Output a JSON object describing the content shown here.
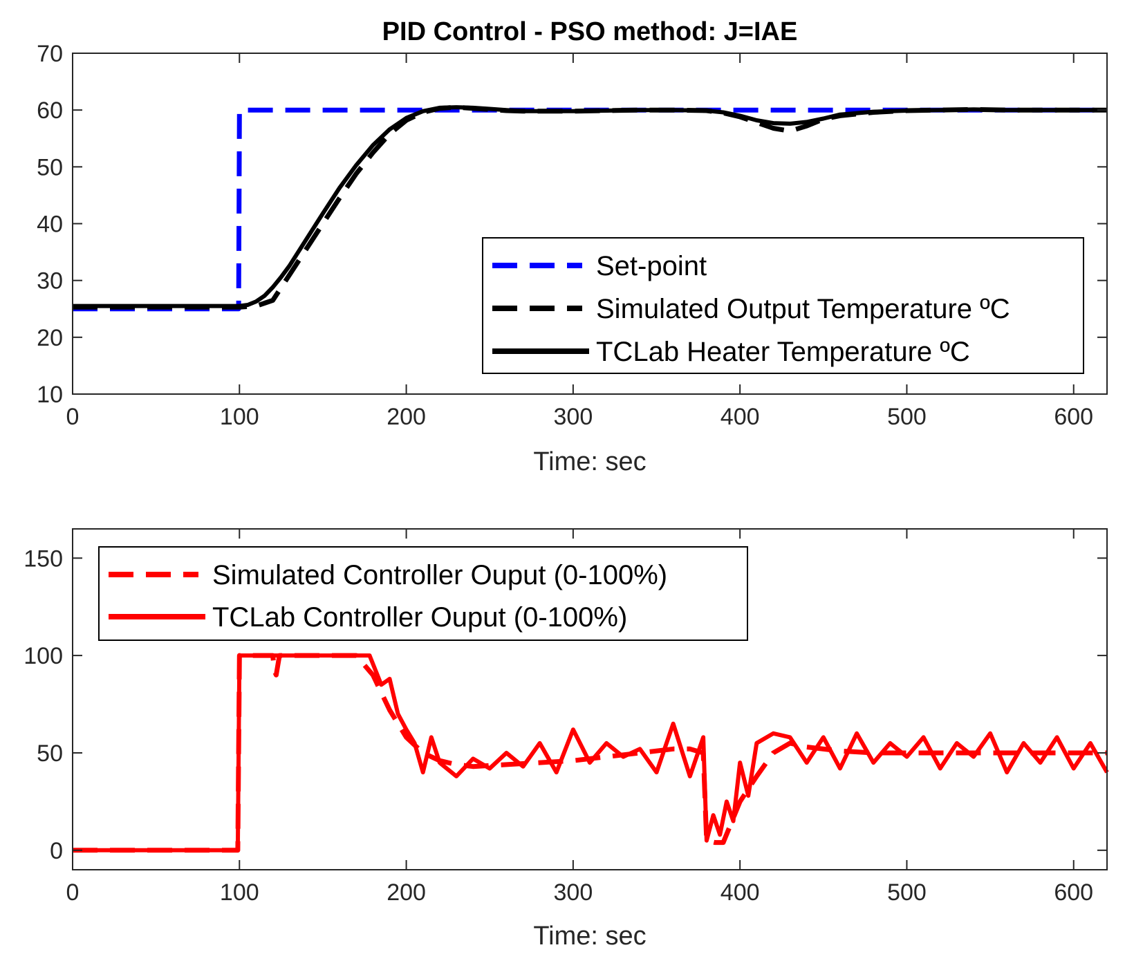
{
  "chart_data": [
    {
      "type": "line",
      "title": "PID Control - PSO method: J=IAE",
      "xlabel": "Time: sec",
      "ylabel": "",
      "xlim": [
        0,
        620
      ],
      "ylim": [
        10,
        70
      ],
      "xticks": [
        "0",
        "100",
        "200",
        "300",
        "400",
        "500",
        "600"
      ],
      "yticks": [
        "10",
        "20",
        "30",
        "40",
        "50",
        "60",
        "70"
      ],
      "grid": false,
      "legend_position": "bottom-right",
      "series": [
        {
          "name": "Set-point",
          "style": "dashed",
          "color": "#0000ff",
          "x": [
            0,
            99.5,
            100,
            620
          ],
          "y": [
            25,
            25,
            60,
            60
          ]
        },
        {
          "name": "Simulated Output Temperature ºC",
          "style": "dashed",
          "color": "#000000",
          "x": [
            0,
            100,
            110,
            120,
            130,
            140,
            150,
            160,
            170,
            180,
            190,
            200,
            210,
            220,
            230,
            240,
            250,
            260,
            270,
            280,
            290,
            300,
            320,
            340,
            360,
            380,
            390,
            400,
            410,
            420,
            430,
            440,
            450,
            460,
            480,
            500,
            520,
            540,
            560,
            580,
            600,
            620
          ],
          "y": [
            25.3,
            25.3,
            25.5,
            26.5,
            31,
            35.5,
            40,
            44.5,
            48.8,
            52.5,
            55.8,
            58.2,
            59.6,
            60.3,
            60.5,
            60.3,
            60.1,
            59.9,
            59.8,
            59.8,
            59.8,
            59.8,
            59.9,
            60.0,
            60.0,
            59.9,
            59.5,
            58.8,
            57.8,
            56.8,
            56.3,
            57.2,
            58.4,
            59.0,
            59.6,
            59.9,
            60.0,
            60.1,
            60.0,
            60.0,
            60.0,
            60.0
          ]
        },
        {
          "name": "TCLab Heater Temperature ºC",
          "style": "solid",
          "color": "#000000",
          "x": [
            0,
            100,
            105,
            110,
            115,
            120,
            125,
            130,
            140,
            150,
            160,
            170,
            180,
            190,
            200,
            210,
            220,
            230,
            240,
            250,
            260,
            270,
            280,
            290,
            300,
            320,
            340,
            360,
            380,
            390,
            400,
            410,
            420,
            430,
            440,
            450,
            460,
            480,
            500,
            520,
            540,
            560,
            580,
            600,
            620
          ],
          "y": [
            25.5,
            25.5,
            25.7,
            26.3,
            27.3,
            28.8,
            30.6,
            32.6,
            37.2,
            41.8,
            46.3,
            50.3,
            53.8,
            56.6,
            58.6,
            59.8,
            60.4,
            60.5,
            60.4,
            60.2,
            60.0,
            59.8,
            59.8,
            59.8,
            59.8,
            59.9,
            60.0,
            60.0,
            59.9,
            59.6,
            59.0,
            58.2,
            57.7,
            57.6,
            57.9,
            58.5,
            59.2,
            59.7,
            59.9,
            60.0,
            60.1,
            60.0,
            60.0,
            60.0,
            60.0
          ]
        }
      ]
    },
    {
      "type": "line",
      "title": "",
      "xlabel": "Time: sec",
      "ylabel": "",
      "xlim": [
        0,
        620
      ],
      "ylim": [
        -10,
        165
      ],
      "xticks": [
        "0",
        "100",
        "200",
        "300",
        "400",
        "500",
        "600"
      ],
      "yticks": [
        "0",
        "50",
        "100",
        "150"
      ],
      "grid": false,
      "legend_position": "top-left",
      "series": [
        {
          "name": "Simulated Controller Ouput (0-100%)",
          "style": "dashed",
          "color": "#ff0000",
          "x": [
            0,
            99,
            100,
            120,
            121,
            122,
            123,
            124,
            125,
            170,
            180,
            190,
            200,
            210,
            220,
            230,
            240,
            260,
            280,
            300,
            320,
            340,
            360,
            370,
            378,
            380,
            385,
            390,
            400,
            410,
            420,
            430,
            440,
            460,
            480,
            500,
            520,
            540,
            560,
            580,
            600,
            620
          ],
          "y": [
            0,
            0,
            100,
            100,
            92,
            90,
            95,
            100,
            100,
            100,
            90,
            72,
            58,
            50,
            46,
            44,
            43,
            44,
            45,
            46,
            48,
            50,
            52,
            52,
            50,
            5,
            4,
            4,
            25,
            38,
            50,
            55,
            53,
            51,
            50,
            50,
            50,
            50,
            50,
            50,
            50,
            50
          ]
        },
        {
          "name": "TCLab Controller Ouput (0-100%)",
          "style": "solid",
          "color": "#ff0000",
          "x": [
            0,
            99,
            100,
            178,
            185,
            190,
            195,
            200,
            205,
            210,
            215,
            220,
            230,
            240,
            250,
            260,
            270,
            280,
            290,
            300,
            310,
            320,
            330,
            340,
            350,
            360,
            370,
            378,
            380,
            384,
            388,
            392,
            396,
            400,
            405,
            410,
            420,
            430,
            440,
            450,
            460,
            470,
            480,
            490,
            500,
            510,
            520,
            530,
            540,
            550,
            560,
            570,
            580,
            590,
            600,
            610,
            620
          ],
          "y": [
            0,
            0,
            100,
            100,
            85,
            88,
            70,
            62,
            55,
            40,
            58,
            45,
            38,
            47,
            42,
            50,
            43,
            55,
            40,
            62,
            45,
            55,
            48,
            52,
            40,
            65,
            38,
            58,
            5,
            18,
            8,
            25,
            15,
            45,
            28,
            55,
            60,
            58,
            45,
            58,
            42,
            60,
            45,
            55,
            48,
            58,
            42,
            55,
            48,
            60,
            40,
            55,
            45,
            58,
            42,
            55,
            40
          ]
        }
      ]
    }
  ]
}
